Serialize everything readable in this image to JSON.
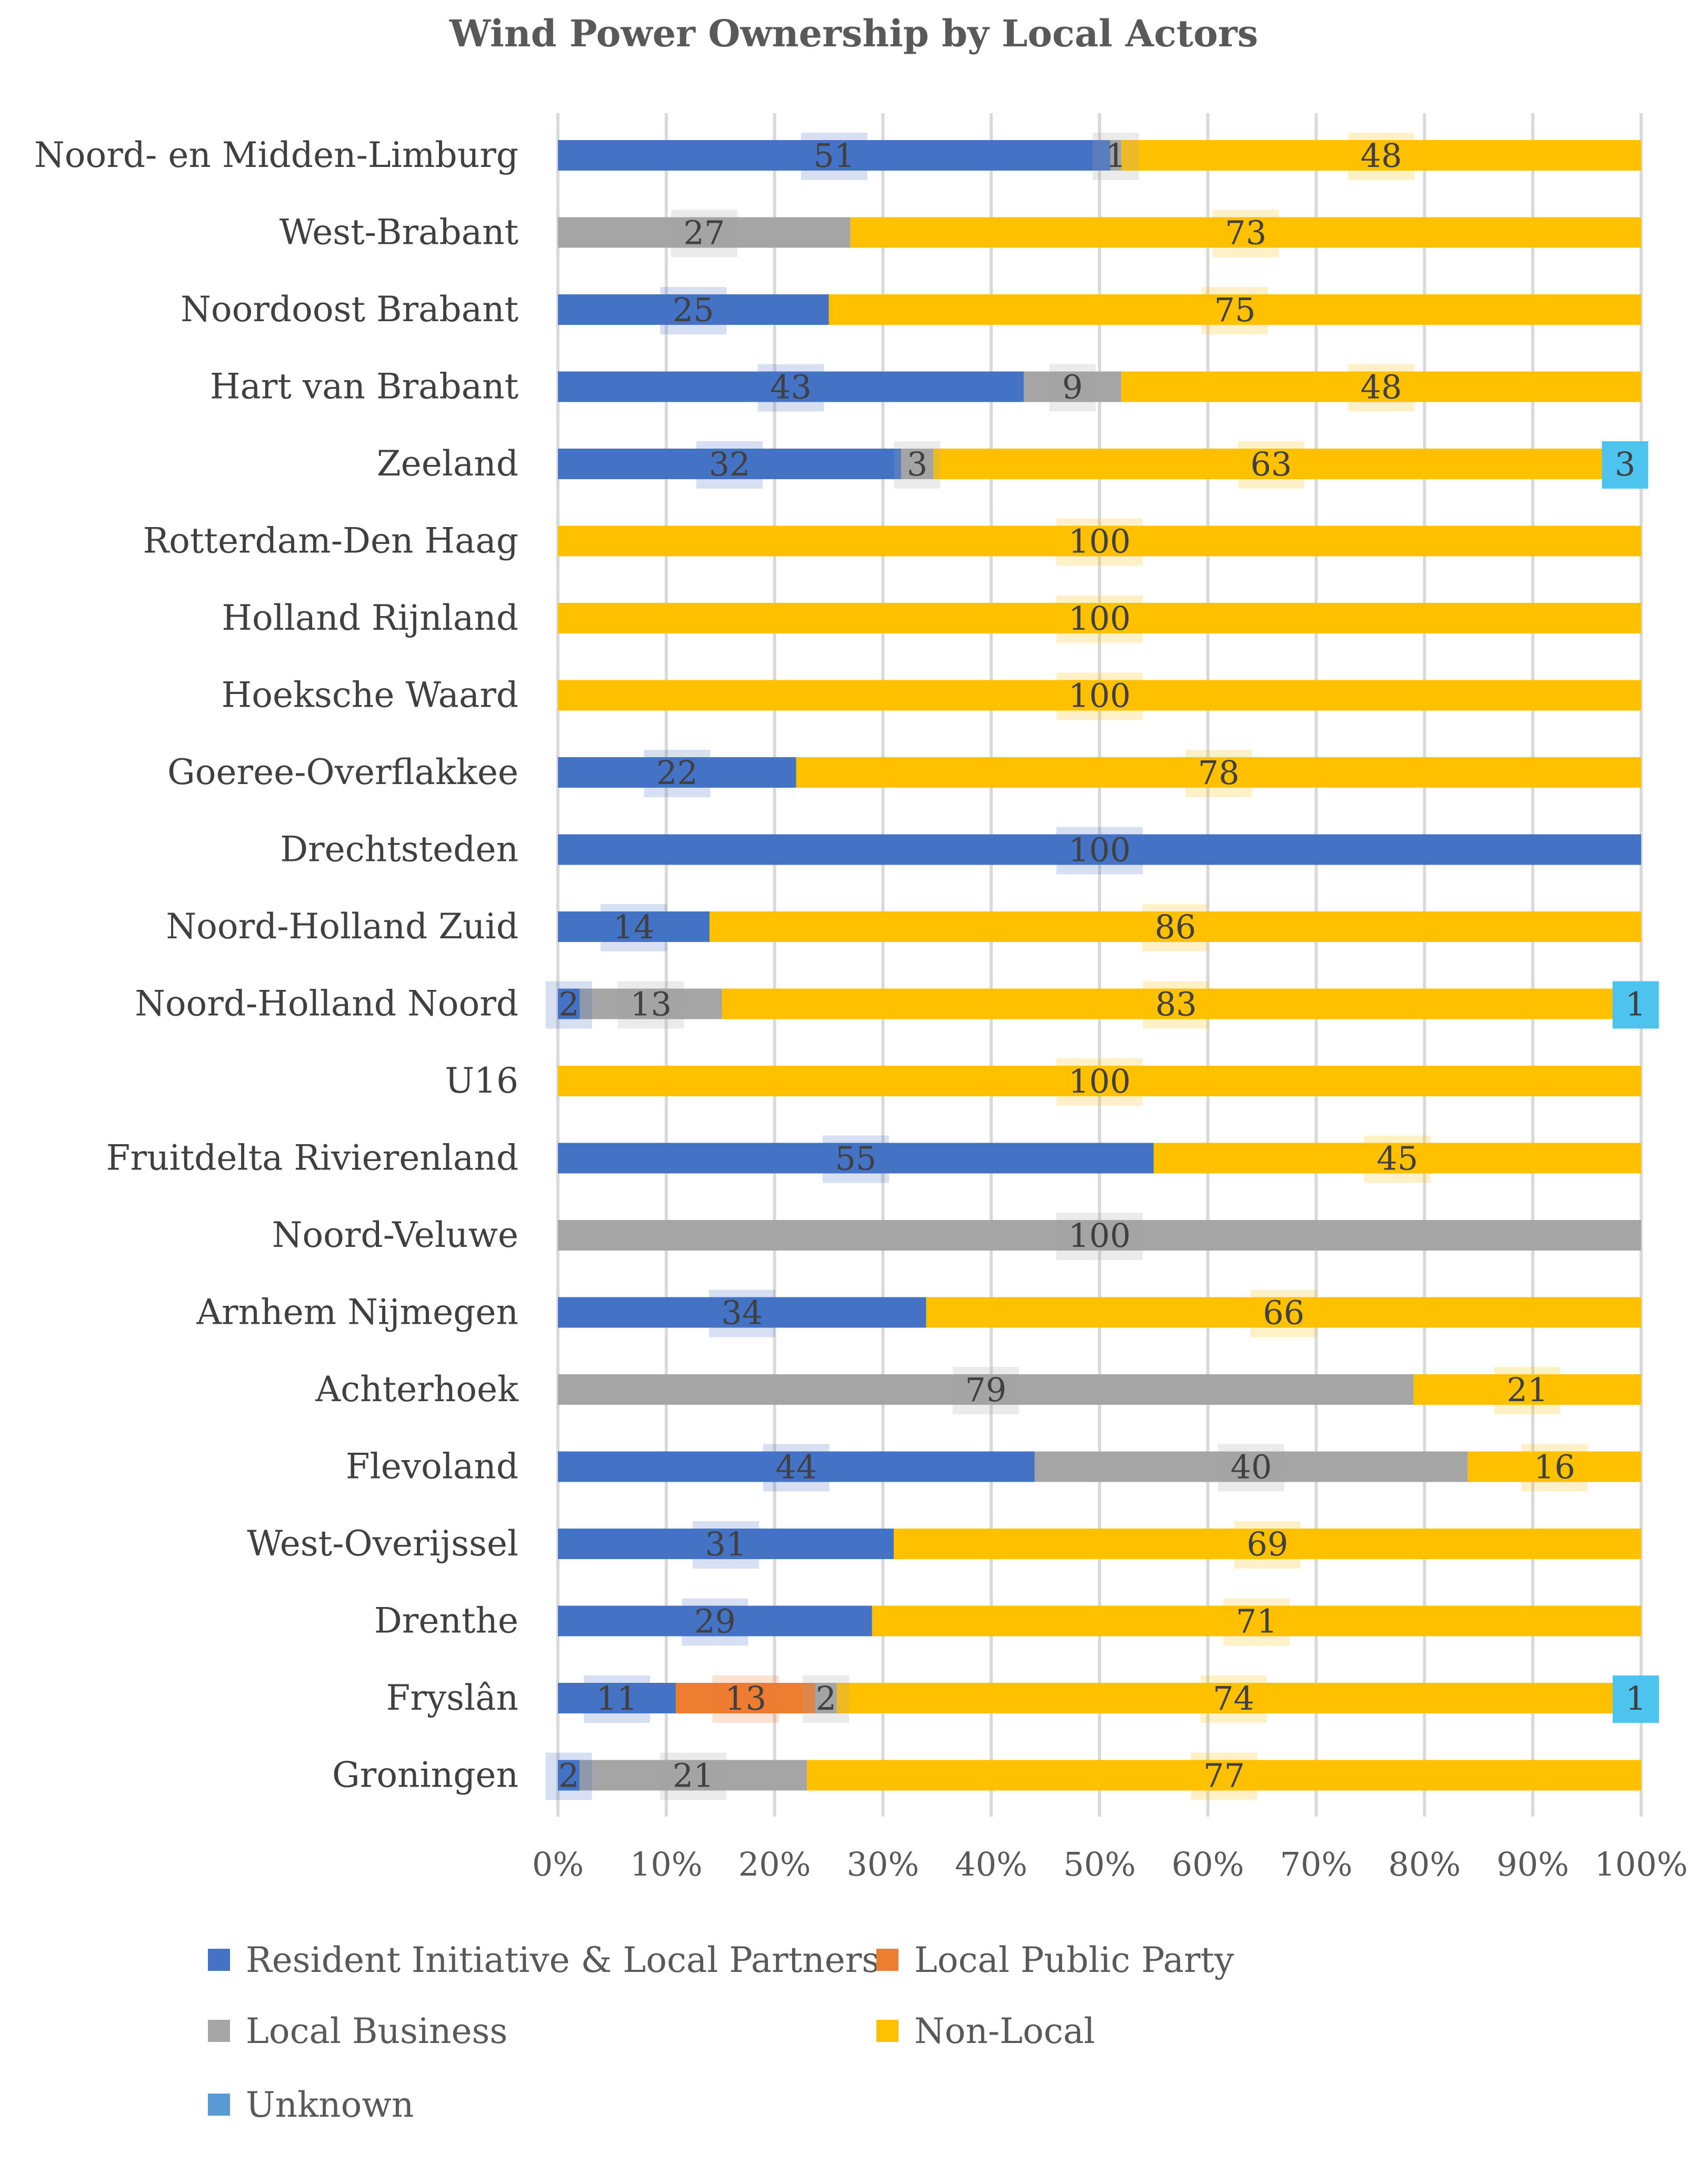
{
  "chart_data": {
    "type": "bar",
    "orientation": "horizontal",
    "stacked": "percent",
    "title": "Wind Power Ownership by Local Actors",
    "xlabel": "",
    "ylabel": "",
    "xlim": [
      0,
      100
    ],
    "x_ticks": [
      "0%",
      "10%",
      "20%",
      "30%",
      "40%",
      "50%",
      "60%",
      "70%",
      "80%",
      "90%",
      "100%"
    ],
    "grid": true,
    "legend_position": "bottom",
    "categories": [
      "Noord- en Midden-Limburg",
      "West-Brabant",
      "Noordoost Brabant",
      "Hart van Brabant",
      "Zeeland",
      "Rotterdam-Den Haag",
      "Holland Rijnland",
      "Hoeksche Waard",
      "Goeree-Overflakkee",
      "Drechtsteden",
      "Noord-Holland Zuid",
      "Noord-Holland Noord",
      "U16",
      "Fruitdelta Rivierenland",
      "Noord-Veluwe",
      "Arnhem Nijmegen",
      "Achterhoek",
      "Flevoland",
      "West-Overijssel",
      "Drenthe",
      "Fryslân",
      "Groningen"
    ],
    "series": [
      {
        "name": "Resident Initiative & Local Partners",
        "color": "#4472C4",
        "values": [
          51,
          0,
          25,
          43,
          32,
          0,
          0,
          0,
          22,
          100,
          14,
          2,
          0,
          55,
          0,
          34,
          0,
          44,
          31,
          29,
          11,
          2
        ]
      },
      {
        "name": "Local Public Party",
        "color": "#ED7D31",
        "values": [
          0,
          0,
          0,
          0,
          0,
          0,
          0,
          0,
          0,
          0,
          0,
          0,
          0,
          0,
          0,
          0,
          0,
          0,
          0,
          0,
          13,
          0
        ]
      },
      {
        "name": "Local Business",
        "color": "#A5A5A5",
        "values": [
          1,
          27,
          0,
          9,
          3,
          0,
          0,
          0,
          0,
          0,
          0,
          13,
          0,
          0,
          100,
          0,
          79,
          40,
          0,
          0,
          2,
          21
        ]
      },
      {
        "name": "Non-Local",
        "color": "#FFC000",
        "values": [
          48,
          73,
          75,
          48,
          63,
          100,
          100,
          100,
          78,
          0,
          86,
          83,
          100,
          45,
          0,
          66,
          21,
          16,
          69,
          71,
          74,
          77
        ]
      },
      {
        "name": "Unknown",
        "color": "#5B9BD5",
        "values": [
          0,
          0,
          0,
          0,
          3,
          0,
          0,
          0,
          0,
          0,
          0,
          1,
          0,
          0,
          0,
          0,
          0,
          0,
          0,
          0,
          1,
          0
        ]
      }
    ]
  }
}
